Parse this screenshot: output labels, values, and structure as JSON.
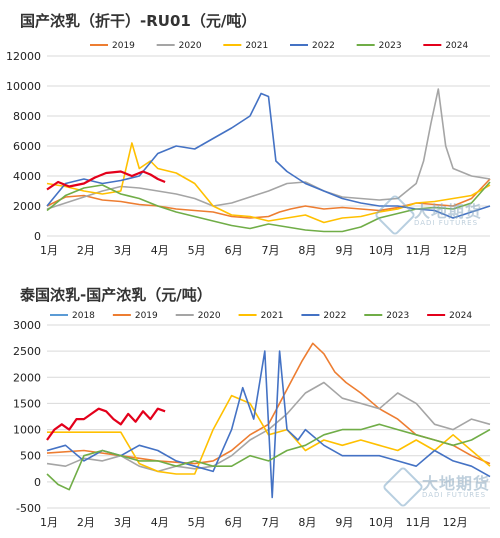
{
  "chart_data": [
    {
      "type": "line",
      "title": "国产浓乳（折干）-RU01（元/吨）",
      "xlabel": "",
      "ylabel": "",
      "ylim": [
        0,
        12000
      ],
      "yticks": [
        0,
        2000,
        4000,
        6000,
        8000,
        10000,
        12000
      ],
      "xlim": [
        0,
        12
      ],
      "xtick_labels": [
        "1月",
        "2月",
        "3月",
        "4月",
        "5月",
        "6月",
        "7月",
        "8月",
        "9月",
        "10月",
        "11月",
        "12月"
      ],
      "grid": "horizontal",
      "legend_position": "top",
      "series": [
        {
          "name": "2019",
          "color": "#ED7D31",
          "x": [
            0,
            0.5,
            1,
            1.5,
            2,
            2.5,
            3,
            3.5,
            4,
            4.5,
            5,
            5.5,
            6,
            6.3,
            6.6,
            7,
            7.5,
            8,
            8.5,
            9,
            9.5,
            10,
            10.5,
            11,
            11.5,
            12
          ],
          "values": [
            2000,
            2600,
            2700,
            2400,
            2300,
            2100,
            2000,
            1800,
            1700,
            1600,
            1300,
            1200,
            1300,
            1600,
            1800,
            2000,
            1800,
            1900,
            1800,
            1700,
            1900,
            2200,
            2100,
            2000,
            2500,
            3800
          ]
        },
        {
          "name": "2020",
          "color": "#A5A5A5",
          "x": [
            0,
            0.5,
            1,
            1.5,
            2,
            2.5,
            3,
            3.5,
            4,
            4.5,
            5,
            5.5,
            6,
            6.5,
            7,
            7.5,
            8,
            8.5,
            9,
            9.5,
            10,
            10.2,
            10.4,
            10.6,
            10.8,
            11,
            11.5,
            12
          ],
          "values": [
            1800,
            2200,
            2600,
            3000,
            3300,
            3200,
            3000,
            2800,
            2500,
            2000,
            2200,
            2600,
            3000,
            3500,
            3600,
            3000,
            2600,
            2500,
            2400,
            2500,
            3500,
            5000,
            7500,
            9800,
            6000,
            4500,
            4000,
            3800
          ]
        },
        {
          "name": "2021",
          "color": "#FFC000",
          "x": [
            0,
            0.5,
            1,
            1.5,
            2,
            2.3,
            2.5,
            2.8,
            3,
            3.5,
            4,
            4.5,
            5,
            5.5,
            6,
            6.5,
            7,
            7.5,
            8,
            8.5,
            9,
            9.5,
            10,
            10.5,
            11,
            11.5,
            12
          ],
          "values": [
            3500,
            3300,
            3000,
            2800,
            3000,
            6200,
            4500,
            5000,
            4500,
            4200,
            3500,
            2000,
            1400,
            1300,
            1000,
            1200,
            1400,
            900,
            1200,
            1300,
            1600,
            1800,
            2200,
            2300,
            2500,
            2700,
            3400
          ]
        },
        {
          "name": "2022",
          "color": "#4472C4",
          "x": [
            0,
            0.5,
            1,
            1.5,
            2,
            2.5,
            3,
            3.5,
            4,
            4.5,
            5,
            5.5,
            5.8,
            6.0,
            6.2,
            6.5,
            7,
            7.5,
            8,
            8.5,
            9,
            9.5,
            10,
            10.5,
            11,
            11.5,
            12
          ],
          "values": [
            2000,
            3500,
            3800,
            3500,
            3700,
            4000,
            5500,
            6000,
            5800,
            6500,
            7200,
            8000,
            9500,
            9300,
            5000,
            4300,
            3500,
            3000,
            2500,
            2200,
            2000,
            2000,
            1800,
            1700,
            1200,
            1600,
            2000
          ]
        },
        {
          "name": "2023",
          "color": "#70AD47",
          "x": [
            0,
            0.5,
            1,
            1.5,
            2,
            2.5,
            3,
            3.5,
            4,
            4.5,
            5,
            5.5,
            6,
            6.5,
            7,
            7.5,
            8,
            8.5,
            9,
            9.5,
            10,
            10.5,
            11,
            11.5,
            12
          ],
          "values": [
            1700,
            2700,
            3200,
            3400,
            2800,
            2500,
            2000,
            1600,
            1300,
            1000,
            700,
            500,
            800,
            600,
            400,
            300,
            300,
            600,
            1200,
            1500,
            1800,
            1900,
            1800,
            2200,
            3600
          ]
        },
        {
          "name": "2024",
          "color": "#E3001B",
          "x": [
            0,
            0.3,
            0.6,
            1,
            1.3,
            1.6,
            2,
            2.3,
            2.6,
            2.8,
            3,
            3.2
          ],
          "values": [
            3100,
            3600,
            3300,
            3500,
            3900,
            4200,
            4300,
            4000,
            4300,
            4100,
            3800,
            3600
          ]
        }
      ]
    },
    {
      "type": "line",
      "title": "泰国浓乳-国产浓乳（元/吨）",
      "xlabel": "",
      "ylabel": "",
      "ylim": [
        -500,
        3000
      ],
      "yticks": [
        -500,
        0,
        500,
        1000,
        1500,
        2000,
        2500,
        3000
      ],
      "xlim": [
        0,
        12
      ],
      "xtick_labels": [
        "1月",
        "2月",
        "3月",
        "4月",
        "5月",
        "6月",
        "7月",
        "8月",
        "9月",
        "10月",
        "11月",
        "12月"
      ],
      "grid": "horizontal",
      "legend_position": "top",
      "series": [
        {
          "name": "2018",
          "color": "#5B9BD5",
          "x": [],
          "values": []
        },
        {
          "name": "2019",
          "color": "#ED7D31",
          "x": [
            0,
            1,
            2,
            3,
            4,
            4.5,
            5,
            5.5,
            6,
            6.3,
            6.6,
            6.9,
            7.2,
            7.5,
            7.8,
            8.1,
            8.5,
            9,
            9.5,
            10,
            10.5,
            11,
            11.5,
            12
          ],
          "values": [
            550,
            600,
            500,
            400,
            350,
            400,
            600,
            900,
            1100,
            1500,
            1900,
            2300,
            2650,
            2450,
            2100,
            1900,
            1700,
            1400,
            1200,
            900,
            800,
            700,
            500,
            350
          ]
        },
        {
          "name": "2020",
          "color": "#A5A5A5",
          "x": [
            0,
            0.5,
            1,
            1.5,
            2,
            2.5,
            3,
            3.5,
            4,
            4.5,
            5,
            5.5,
            6,
            6.5,
            7,
            7.5,
            8,
            8.5,
            9,
            9.5,
            10,
            10.5,
            11,
            11.5,
            12
          ],
          "values": [
            350,
            300,
            450,
            400,
            500,
            300,
            200,
            300,
            250,
            300,
            500,
            800,
            1000,
            1300,
            1700,
            1900,
            1600,
            1500,
            1400,
            1700,
            1500,
            1100,
            1000,
            1200,
            1100
          ]
        },
        {
          "name": "2021",
          "color": "#FFC000",
          "x": [
            0,
            0.5,
            1,
            1.5,
            2,
            2.5,
            3,
            3.5,
            4,
            4.5,
            5,
            5.5,
            6,
            6.5,
            7,
            7.5,
            8,
            8.5,
            9,
            9.5,
            10,
            10.5,
            11,
            11.5,
            12
          ],
          "values": [
            950,
            950,
            950,
            950,
            950,
            350,
            200,
            150,
            150,
            1000,
            1650,
            1500,
            900,
            1000,
            600,
            800,
            700,
            800,
            700,
            600,
            800,
            600,
            900,
            600,
            300
          ]
        },
        {
          "name": "2022",
          "color": "#4472C4",
          "x": [
            0,
            0.5,
            1,
            1.5,
            2,
            2.5,
            3,
            3.5,
            4,
            4.5,
            5,
            5.3,
            5.6,
            5.9,
            6.1,
            6.3,
            6.5,
            6.8,
            7,
            7.5,
            8,
            8.5,
            9,
            9.5,
            10,
            10.5,
            11,
            11.5,
            12
          ],
          "values": [
            600,
            700,
            400,
            600,
            500,
            700,
            600,
            400,
            300,
            200,
            1000,
            1800,
            1200,
            2500,
            -300,
            2500,
            1000,
            800,
            1000,
            700,
            500,
            500,
            500,
            400,
            300,
            600,
            400,
            300,
            100
          ]
        },
        {
          "name": "2023",
          "color": "#70AD47",
          "x": [
            0,
            0.3,
            0.6,
            1,
            1.5,
            2,
            2.5,
            3,
            3.5,
            4,
            4.5,
            5,
            5.5,
            6,
            6.5,
            7,
            7.5,
            8,
            8.5,
            9,
            9.5,
            10,
            10.5,
            11,
            11.5,
            12
          ],
          "values": [
            150,
            -50,
            -150,
            500,
            600,
            500,
            400,
            400,
            300,
            400,
            300,
            300,
            500,
            400,
            600,
            700,
            900,
            1000,
            1000,
            1100,
            1000,
            900,
            800,
            700,
            800,
            1000
          ]
        },
        {
          "name": "2024",
          "color": "#E3001B",
          "x": [
            0,
            0.2,
            0.4,
            0.6,
            0.8,
            1,
            1.2,
            1.4,
            1.6,
            1.8,
            2,
            2.2,
            2.4,
            2.6,
            2.8,
            3,
            3.2
          ],
          "values": [
            800,
            1000,
            1100,
            1000,
            1200,
            1200,
            1300,
            1400,
            1350,
            1200,
            1100,
            1300,
            1150,
            1350,
            1200,
            1400,
            1350
          ]
        }
      ]
    }
  ]
}
